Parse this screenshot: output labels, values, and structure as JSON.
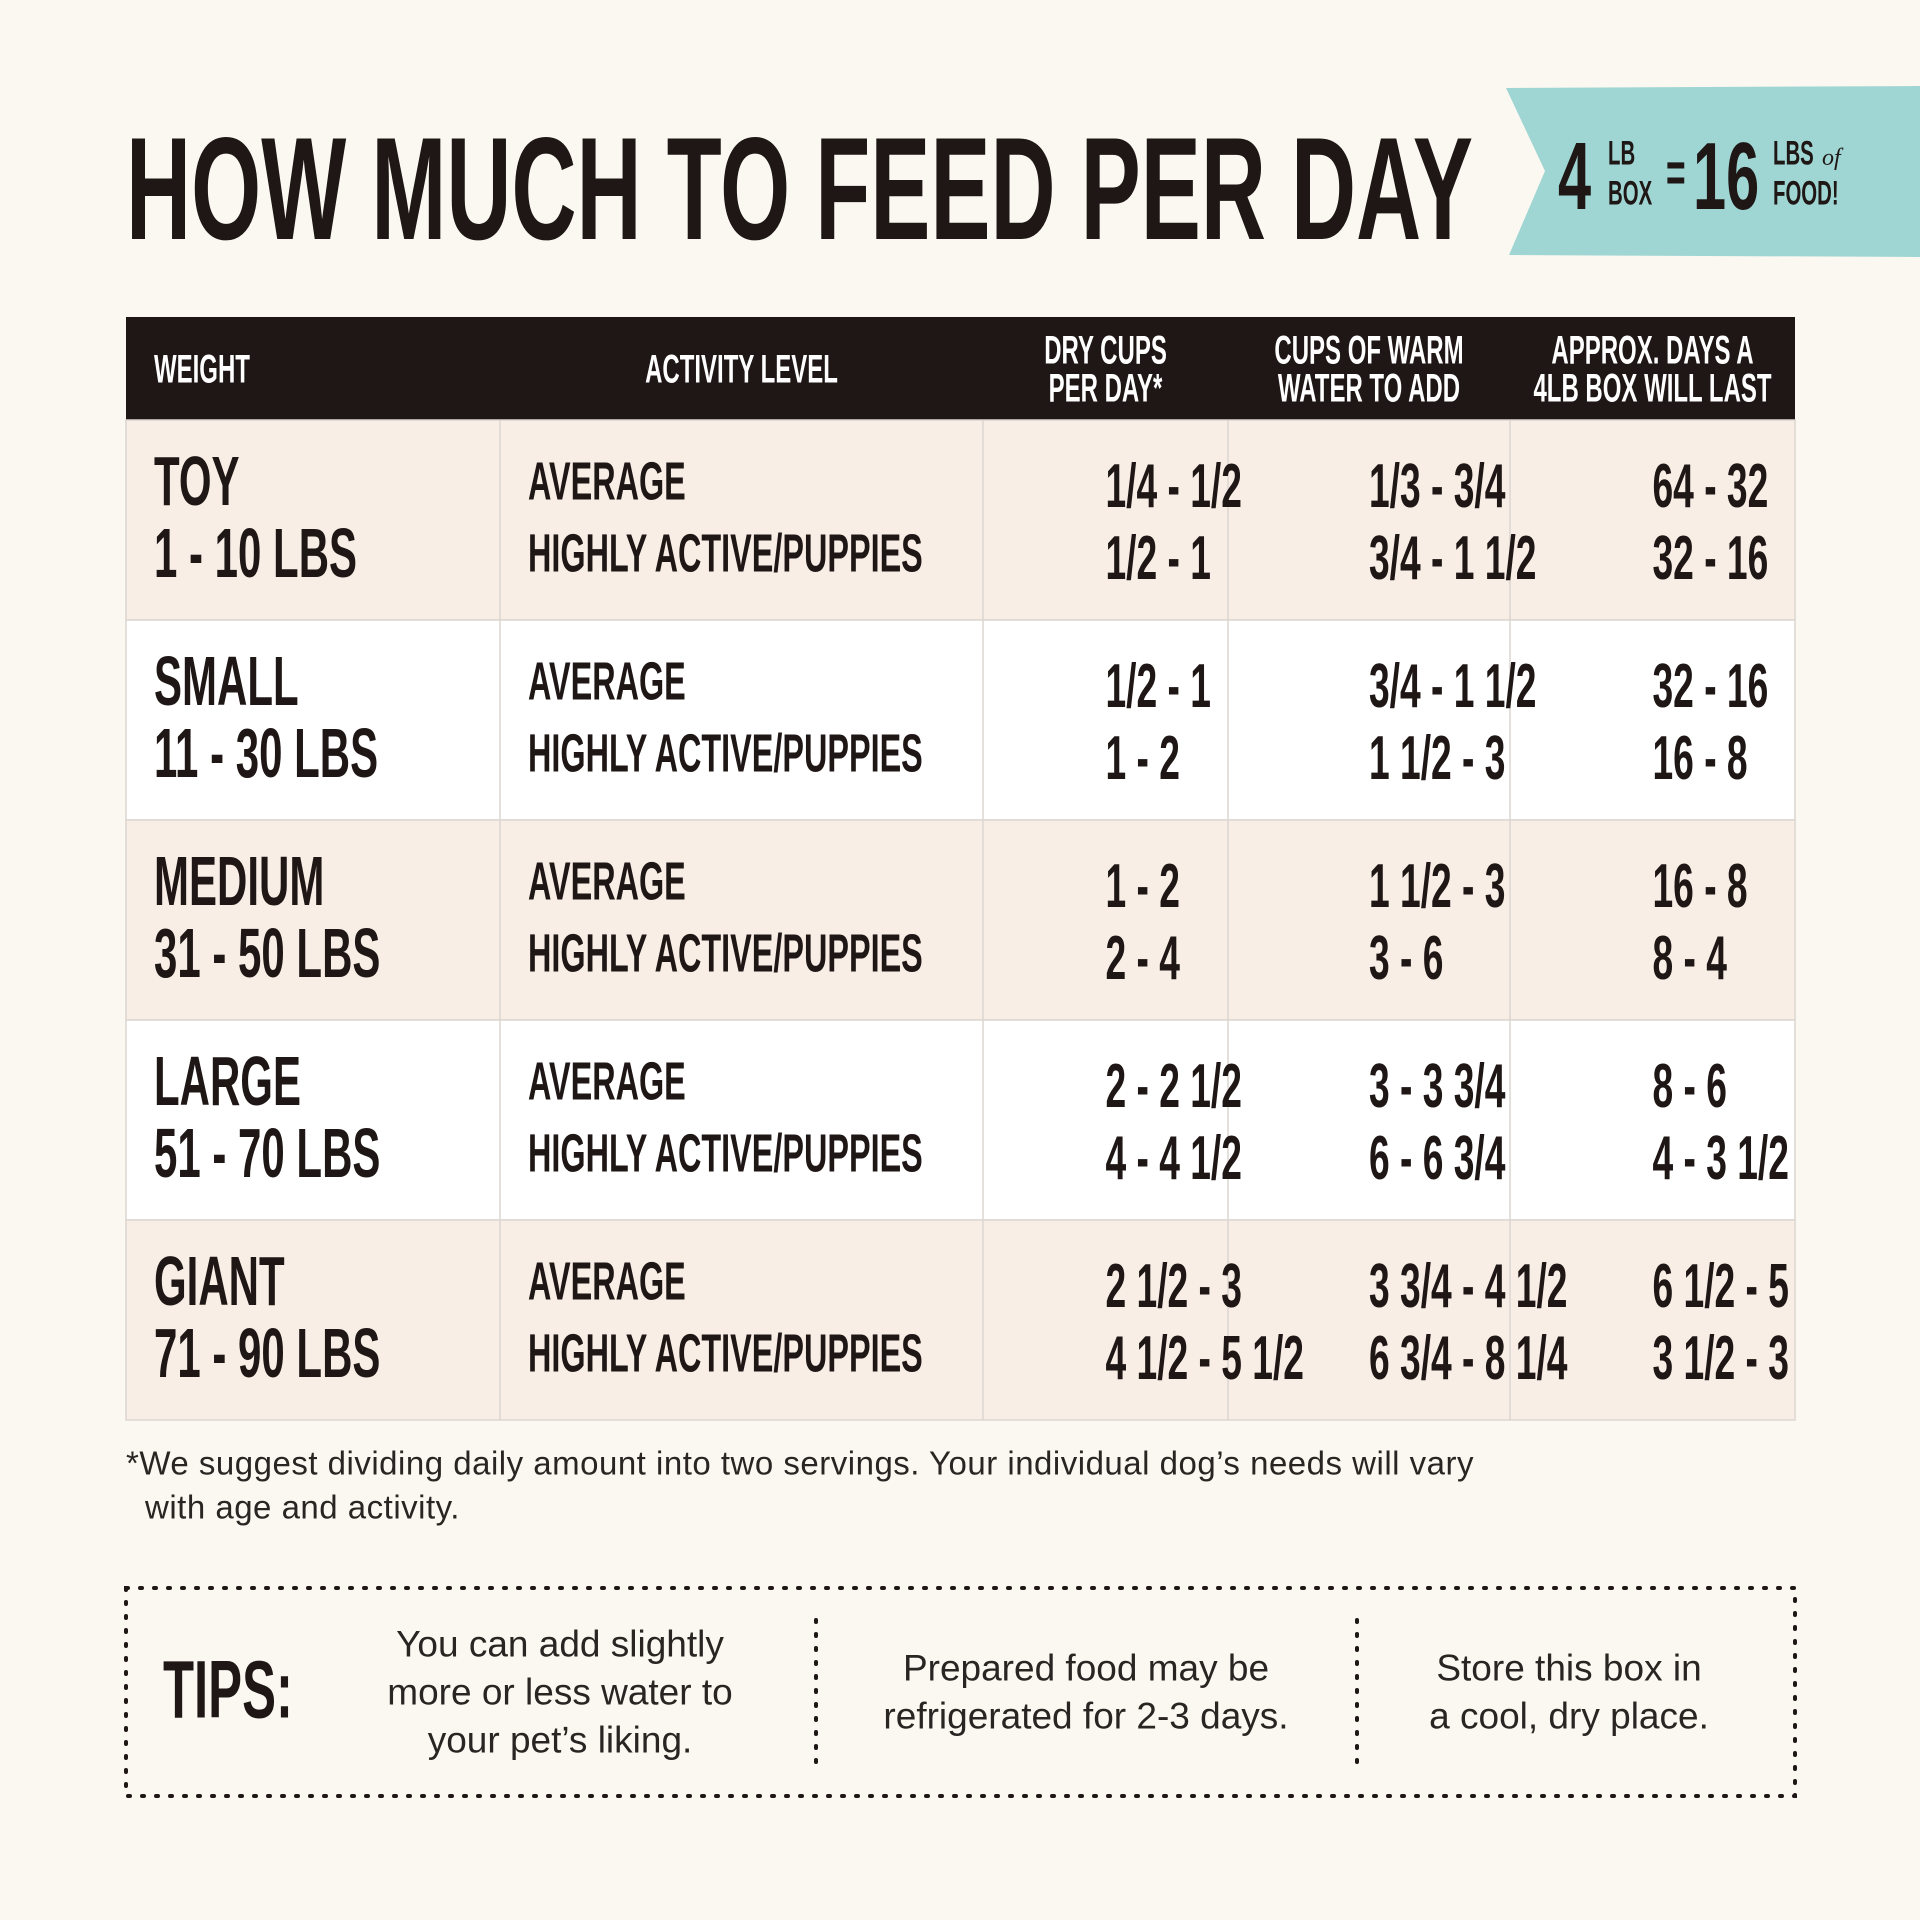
{
  "header": {
    "title": "HOW MUCH TO FEED PER DAY",
    "badge": {
      "box_weight": "4",
      "box_unit_top": "LB",
      "box_unit_bottom": "BOX",
      "equals": "=",
      "food_weight": "16",
      "food_unit_top": "LBS",
      "food_unit_of": "of",
      "food_unit_bottom": "FOOD!"
    }
  },
  "table": {
    "columns": [
      [
        "WEIGHT"
      ],
      [
        "ACTIVITY LEVEL"
      ],
      [
        "DRY CUPS",
        "PER DAY*"
      ],
      [
        "CUPS OF WARM",
        "WATER TO ADD"
      ],
      [
        "APPROX. DAYS A",
        "4LB BOX WILL LAST"
      ]
    ],
    "rows": [
      {
        "size": "TOY",
        "weight": "1 - 10 LBS",
        "activity": [
          "AVERAGE",
          "HIGHLY ACTIVE/PUPPIES"
        ],
        "dry_cups": [
          "1/4 - 1/2",
          "1/2 - 1"
        ],
        "warm_water": [
          "1/3 - 3/4",
          "3/4 - 1 1/2"
        ],
        "days": [
          "64 - 32",
          "32 - 16"
        ]
      },
      {
        "size": "SMALL",
        "weight": "11 - 30 LBS",
        "activity": [
          "AVERAGE",
          "HIGHLY ACTIVE/PUPPIES"
        ],
        "dry_cups": [
          "1/2 - 1",
          "1 - 2"
        ],
        "warm_water": [
          "3/4 - 1 1/2",
          "1 1/2 - 3"
        ],
        "days": [
          "32 - 16",
          "16 - 8"
        ]
      },
      {
        "size": "MEDIUM",
        "weight": "31 - 50 LBS",
        "activity": [
          "AVERAGE",
          "HIGHLY ACTIVE/PUPPIES"
        ],
        "dry_cups": [
          "1 - 2",
          "2 - 4"
        ],
        "warm_water": [
          "1 1/2 - 3",
          "3 - 6"
        ],
        "days": [
          "16 - 8",
          "8 - 4"
        ]
      },
      {
        "size": "LARGE",
        "weight": "51 - 70 LBS",
        "activity": [
          "AVERAGE",
          "HIGHLY ACTIVE/PUPPIES"
        ],
        "dry_cups": [
          "2 - 2 1/2",
          "4 - 4 1/2"
        ],
        "warm_water": [
          "3 - 3 3/4",
          "6 - 6 3/4"
        ],
        "days": [
          "8 - 6",
          "4 - 3 1/2"
        ]
      },
      {
        "size": "GIANT",
        "weight": "71 - 90 LBS",
        "activity": [
          "AVERAGE",
          "HIGHLY ACTIVE/PUPPIES"
        ],
        "dry_cups": [
          "2 1/2 - 3",
          "4 1/2 - 5 1/2"
        ],
        "warm_water": [
          "3 3/4 - 4 1/2",
          "6 3/4 - 8 1/4"
        ],
        "days": [
          "6 1/2 - 5",
          "3 1/2 - 3"
        ]
      }
    ]
  },
  "footnote": [
    "*We suggest dividing daily amount into two servings. Your individual dog’s needs will vary",
    "with age and activity."
  ],
  "tips": {
    "label": "TIPS:",
    "items": [
      [
        "You can add slightly",
        "more or less water to",
        "your pet’s liking."
      ],
      [
        "Prepared food may be",
        "refrigerated for 2-3 days."
      ],
      [
        "Store this box in",
        "a cool, dry place."
      ]
    ]
  }
}
